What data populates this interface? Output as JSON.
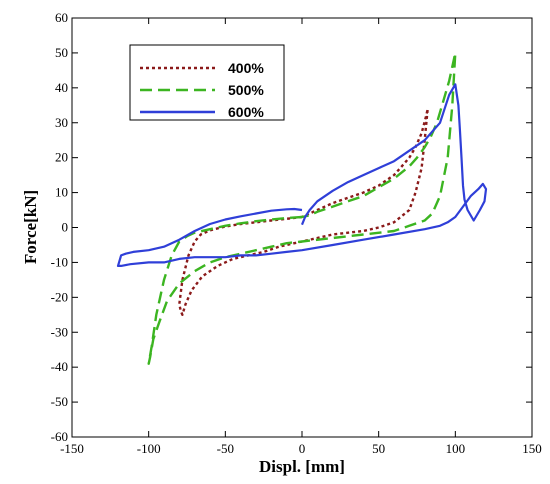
{
  "chart_data": {
    "type": "line",
    "title": "",
    "xlabel": "Displ. [mm]",
    "ylabel": "Force[kN]",
    "xlim": [
      -150,
      150
    ],
    "ylim": [
      -60,
      60
    ],
    "xticks": [
      -150,
      -100,
      -50,
      0,
      50,
      100,
      150
    ],
    "yticks": [
      -60,
      -50,
      -40,
      -30,
      -20,
      -10,
      0,
      10,
      20,
      30,
      40,
      50,
      60
    ],
    "grid": false,
    "legend_position": "top-left",
    "series": [
      {
        "name": "400%",
        "color": "#8b1a1a",
        "dash": "dotted",
        "x": [
          0,
          -10,
          -20,
          -30,
          -40,
          -50,
          -60,
          -66,
          -70,
          -74,
          -78,
          -80,
          -79,
          -78,
          -76,
          -72,
          -65,
          -55,
          -45,
          -35,
          -25,
          -15,
          -5,
          0,
          10,
          20,
          30,
          40,
          50,
          60,
          70,
          74,
          78,
          80,
          82,
          81,
          78,
          74,
          70,
          65,
          60,
          50,
          40,
          30,
          20,
          10,
          5,
          0
        ],
        "y": [
          3,
          2.5,
          2,
          1.5,
          1,
          0.3,
          -0.8,
          -2,
          -4,
          -8,
          -15,
          -22,
          -24,
          -25,
          -22,
          -18,
          -14,
          -11,
          -9,
          -8,
          -7,
          -5.5,
          -4.5,
          -4,
          -3,
          -2,
          -1.5,
          -1,
          0,
          1.5,
          5,
          10,
          17,
          25,
          34,
          32,
          27,
          23,
          20,
          17.5,
          15,
          12,
          10,
          8.5,
          7,
          5,
          4,
          3
        ]
      },
      {
        "name": "500%",
        "color": "#3cb521",
        "dash": "dashed",
        "x": [
          0,
          -10,
          -20,
          -30,
          -40,
          -50,
          -60,
          -70,
          -75,
          -80,
          -85,
          -90,
          -95,
          -98,
          -100,
          -99,
          -97,
          -93,
          -88,
          -80,
          -70,
          -60,
          -50,
          -40,
          -30,
          -20,
          -10,
          0,
          20,
          40,
          60,
          70,
          80,
          85,
          90,
          95,
          98,
          100,
          99,
          96,
          92,
          88,
          84,
          80,
          75,
          70,
          60,
          50,
          40,
          30,
          20,
          10,
          5,
          0
        ],
        "y": [
          3,
          2.7,
          2.3,
          1.8,
          1.2,
          0.5,
          -0.5,
          -1.5,
          -2.5,
          -4,
          -8,
          -15,
          -25,
          -34,
          -39,
          -37,
          -32,
          -27,
          -21,
          -16,
          -12.5,
          -10,
          -8.5,
          -7.5,
          -6.5,
          -5.5,
          -4.5,
          -4,
          -3,
          -2,
          -1,
          0.5,
          2,
          4,
          9,
          20,
          35,
          50,
          48,
          42,
          36,
          30,
          26,
          23,
          20,
          17.5,
          14,
          11.5,
          9,
          7.5,
          6,
          4.5,
          3.5,
          3
        ]
      },
      {
        "name": "600%",
        "color": "#2f3fd8",
        "dash": "solid",
        "x": [
          0,
          -5,
          -10,
          -20,
          -30,
          -40,
          -50,
          -60,
          -70,
          -80,
          -90,
          -100,
          -110,
          -115,
          -118,
          -120,
          -118,
          -112,
          -100,
          -90,
          -80,
          -70,
          -60,
          -50,
          -40,
          -30,
          -20,
          -10,
          0,
          20,
          40,
          60,
          80,
          90,
          95,
          100,
          105,
          110,
          115,
          118,
          120,
          119,
          116,
          112,
          108,
          106,
          105,
          104,
          103,
          102,
          100,
          96,
          90,
          80,
          70,
          60,
          50,
          40,
          30,
          20,
          10,
          5,
          2,
          0
        ],
        "y": [
          5,
          5.3,
          5.2,
          4.8,
          4,
          3.2,
          2.3,
          1,
          -1,
          -3.5,
          -5.5,
          -6.5,
          -7,
          -7.5,
          -8,
          -11,
          -11,
          -10.5,
          -10,
          -10,
          -9,
          -8.5,
          -8.5,
          -8.5,
          -8,
          -8,
          -7.5,
          -7,
          -6.5,
          -5,
          -3.5,
          -2,
          -0.5,
          0.5,
          1.5,
          3,
          6,
          9,
          11,
          12.5,
          11,
          7.5,
          5,
          2,
          5,
          8,
          12,
          20,
          28,
          35,
          41,
          38,
          30,
          25,
          22,
          19,
          17,
          15,
          13,
          10.5,
          7.5,
          5,
          3,
          0.8
        ]
      }
    ]
  }
}
